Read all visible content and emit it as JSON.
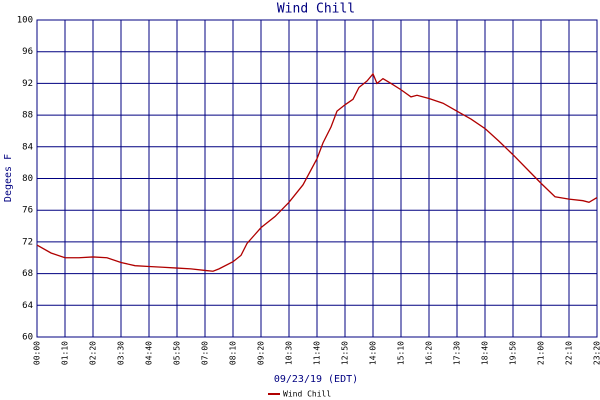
{
  "chart_data": {
    "type": "line",
    "title": "Wind Chill",
    "y_label": "Degees F",
    "x_label": "09/23/19 (EDT)",
    "x": [
      "00:00",
      "00:35",
      "01:10",
      "01:45",
      "02:20",
      "02:55",
      "03:30",
      "04:05",
      "04:40",
      "05:15",
      "05:50",
      "06:25",
      "07:00",
      "07:20",
      "07:35",
      "08:10",
      "08:30",
      "08:45",
      "09:20",
      "09:55",
      "10:30",
      "11:05",
      "11:40",
      "11:55",
      "12:15",
      "12:30",
      "12:50",
      "13:10",
      "13:25",
      "13:45",
      "14:00",
      "14:10",
      "14:25",
      "14:45",
      "15:10",
      "15:35",
      "15:50",
      "16:20",
      "16:55",
      "17:30",
      "18:05",
      "18:40",
      "19:15",
      "19:50",
      "20:25",
      "21:00",
      "21:35",
      "22:10",
      "22:45",
      "23:00",
      "23:20"
    ],
    "series": [
      {
        "name": "Wind Chill",
        "color": "#b00000",
        "values": [
          71.6,
          70.6,
          70.0,
          70.0,
          70.1,
          70.0,
          69.4,
          69.0,
          68.9,
          68.8,
          68.7,
          68.6,
          68.4,
          68.3,
          68.6,
          69.5,
          70.3,
          71.8,
          73.8,
          75.2,
          77.0,
          79.2,
          82.5,
          84.5,
          86.5,
          88.5,
          89.3,
          90.0,
          91.5,
          92.3,
          93.2,
          92.0,
          92.6,
          92.0,
          91.2,
          90.3,
          90.5,
          90.1,
          89.5,
          88.5,
          87.5,
          86.3,
          84.7,
          83.0,
          81.2,
          79.4,
          77.7,
          77.4,
          77.2,
          77.0,
          77.6
        ]
      }
    ],
    "xlim": [
      "00:00",
      "23:20"
    ],
    "xticks": [
      "00:00",
      "01:10",
      "02:20",
      "03:30",
      "04:40",
      "05:50",
      "07:00",
      "08:10",
      "09:20",
      "10:30",
      "11:40",
      "12:50",
      "14:00",
      "15:10",
      "16:20",
      "17:30",
      "18:40",
      "19:50",
      "21:00",
      "22:10",
      "23:20"
    ],
    "ylim": [
      60,
      100
    ],
    "yticks": [
      60,
      64,
      68,
      72,
      76,
      80,
      84,
      88,
      92,
      96,
      100
    ],
    "grid": true,
    "grid_color": "#000080",
    "legend": "bottom"
  }
}
